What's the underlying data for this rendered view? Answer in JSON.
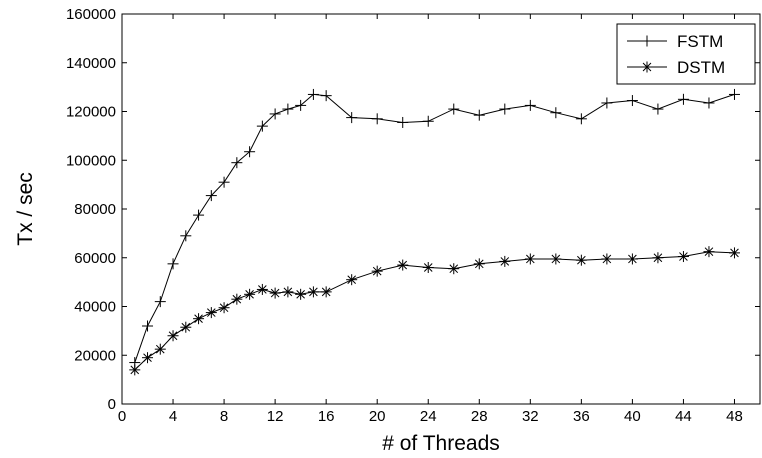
{
  "chart_data": {
    "type": "line",
    "title": "",
    "xlabel": "# of Threads",
    "ylabel": "Tx / sec",
    "xlim": [
      0,
      50
    ],
    "ylim": [
      0,
      160000
    ],
    "xticks": [
      0,
      4,
      8,
      12,
      16,
      20,
      24,
      28,
      32,
      36,
      40,
      44,
      48
    ],
    "yticks": [
      0,
      20000,
      40000,
      60000,
      80000,
      100000,
      120000,
      140000,
      160000
    ],
    "grid": false,
    "legend": "top-right",
    "series": [
      {
        "name": "FSTM",
        "marker": "plus",
        "color": "#000000",
        "x": [
          1,
          2,
          3,
          4,
          5,
          6,
          7,
          8,
          9,
          10,
          11,
          12,
          13,
          14,
          15,
          16,
          18,
          20,
          22,
          24,
          26,
          28,
          30,
          32,
          34,
          36,
          38,
          40,
          42,
          44,
          46,
          48
        ],
        "y": [
          17000,
          32000,
          42000,
          57500,
          69000,
          77500,
          85500,
          91000,
          99000,
          103500,
          114000,
          119000,
          121000,
          122500,
          127000,
          126500,
          117500,
          117000,
          115500,
          116000,
          121000,
          118500,
          121000,
          122500,
          119500,
          117000,
          123500,
          124500,
          121000,
          125000,
          123500,
          127000
        ]
      },
      {
        "name": "DSTM",
        "marker": "asterisk",
        "color": "#000000",
        "x": [
          1,
          2,
          3,
          4,
          5,
          6,
          7,
          8,
          9,
          10,
          11,
          12,
          13,
          14,
          15,
          16,
          18,
          20,
          22,
          24,
          26,
          28,
          30,
          32,
          34,
          36,
          38,
          40,
          42,
          44,
          46,
          48
        ],
        "y": [
          14000,
          19000,
          22500,
          28000,
          31500,
          35000,
          37500,
          39500,
          43000,
          45000,
          47000,
          45500,
          46000,
          45000,
          46000,
          46000,
          51000,
          54500,
          57000,
          56000,
          55500,
          57500,
          58500,
          59500,
          59500,
          59000,
          59500,
          59500,
          60000,
          60500,
          62500,
          62000
        ]
      }
    ]
  }
}
